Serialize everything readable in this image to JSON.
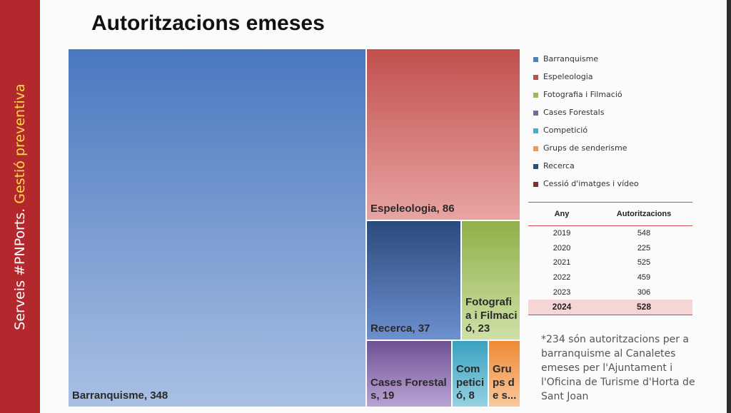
{
  "sidebar": {
    "text_white": "Serveis #PNPorts.",
    "text_yellow": "Gestió preventiva"
  },
  "title": "Autoritzacions emeses",
  "chart_data": {
    "type": "treemap",
    "title": "Autoritzacions emeses",
    "labels_on_tiles": [
      "Barranquisme, 348",
      "Espeleologia, 86",
      "Recerca, 37",
      "Fotografia i Filmació, 23",
      "Cases Forestals, 19",
      "Competició, 8",
      "Grups de s..."
    ],
    "items": [
      {
        "name": "Barranquisme",
        "value": 348,
        "color": "#5b85c8"
      },
      {
        "name": "Espeleologia",
        "value": 86,
        "color": "#c6585a"
      },
      {
        "name": "Recerca",
        "value": 37,
        "color": "#3d5d94"
      },
      {
        "name": "Fotografia i Filmació",
        "value": 23,
        "color": "#9bbb59"
      },
      {
        "name": "Cases Forestals",
        "value": 19,
        "color": "#8064a2"
      },
      {
        "name": "Competició",
        "value": 8,
        "color": "#4bacc6"
      },
      {
        "name": "Grups de senderisme",
        "value": null,
        "color": "#f79646"
      }
    ],
    "legend": [
      {
        "label": "Barranquisme",
        "color": "#4f81bd"
      },
      {
        "label": "Espeleologia",
        "color": "#c0504d"
      },
      {
        "label": "Fotografia i Filmació",
        "color": "#9bbb59"
      },
      {
        "label": "Cases Forestals",
        "color": "#8064a2"
      },
      {
        "label": "Competició",
        "color": "#4bacc6"
      },
      {
        "label": "Grups de senderisme",
        "color": "#f79646"
      },
      {
        "label": "Recerca",
        "color": "#2c4d75"
      },
      {
        "label": "Cessió d'imatges i vídeo",
        "color": "#8c2b28"
      }
    ],
    "legend_position": "right"
  },
  "table": {
    "headers": [
      "Any",
      "Autoritzacions"
    ],
    "rows": [
      [
        "2019",
        "548"
      ],
      [
        "2020",
        "225"
      ],
      [
        "2021",
        "525"
      ],
      [
        "2022",
        "459"
      ],
      [
        "2023",
        "306"
      ],
      [
        "2024",
        "528"
      ]
    ]
  },
  "footnote": "*234 són autoritzacions per a barranquisme al Canaletes emeses per l'Ajuntament i l'Oficina de Turisme d'Horta de Sant Joan"
}
